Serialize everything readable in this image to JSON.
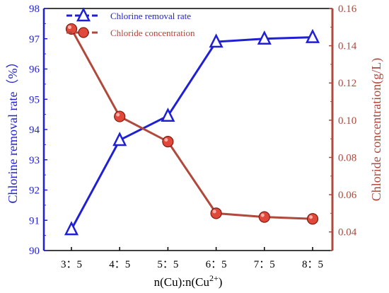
{
  "chart_data": {
    "type": "line",
    "categories": [
      "3：5",
      "4：5",
      "5：5",
      "6：5",
      "7：5",
      "8：5"
    ],
    "xlabel": "n(Cu):n(Cu",
    "xlabel_sup": "2+",
    "xlabel_end": ")",
    "series": [
      {
        "name": "Chlorine removal rate",
        "axis": "left",
        "color": "#1f1fd6",
        "marker": "triangle",
        "values": [
          90.7,
          93.65,
          94.45,
          96.9,
          97.0,
          97.05
        ]
      },
      {
        "name": "Chloride concentration",
        "axis": "right",
        "color": "#b0483c",
        "marker": "circle",
        "values": [
          0.149,
          0.102,
          0.0885,
          0.05,
          0.048,
          0.047
        ]
      }
    ],
    "y_left": {
      "label": "Chlorine removal rate（%）",
      "ylim": [
        90,
        98
      ],
      "ticks": [
        "90",
        "91",
        "92",
        "93",
        "94",
        "95",
        "96",
        "97",
        "98"
      ],
      "color": "#1f1fd6"
    },
    "y_right": {
      "label": "Chloride concentration(g/L)",
      "ylim": [
        0.03,
        0.16
      ],
      "ticks": [
        "0.04",
        "0.06",
        "0.08",
        "0.10",
        "0.12",
        "0.14",
        "0.16"
      ],
      "color": "#b0483c"
    },
    "legend_position": "top-left",
    "grid": false
  }
}
